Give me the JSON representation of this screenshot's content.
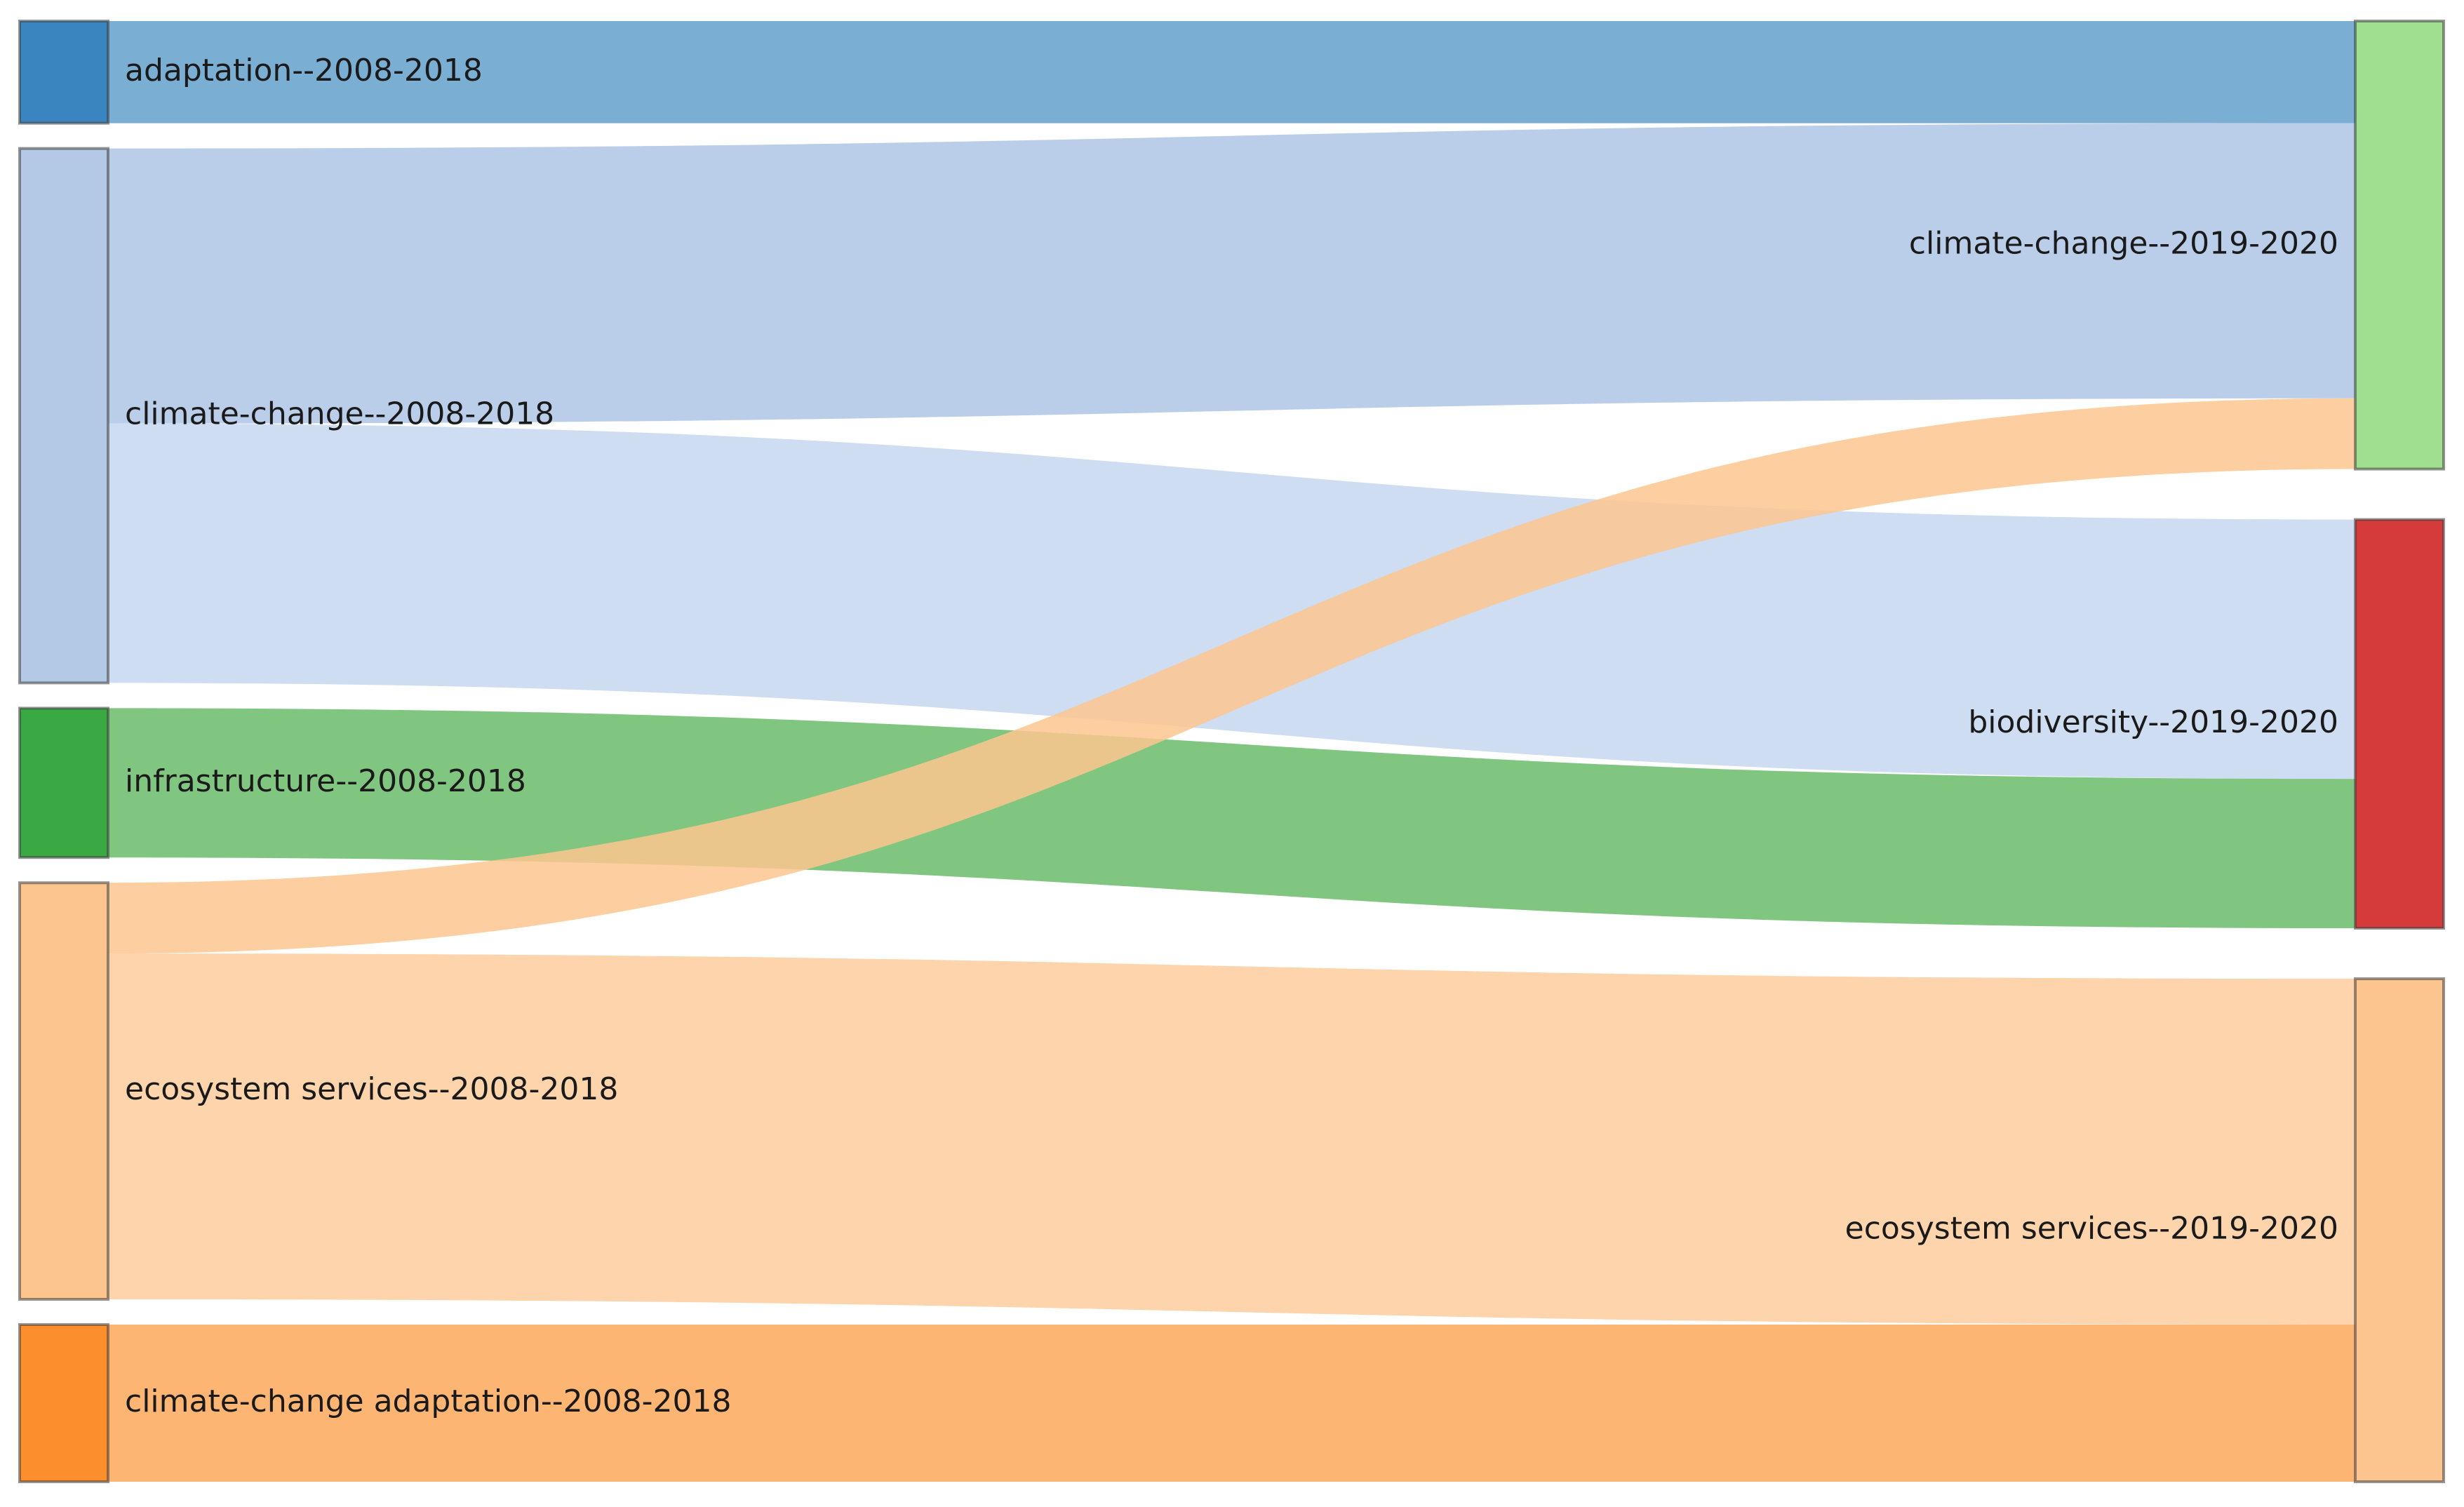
{
  "chart_data": {
    "type": "sankey",
    "title": "",
    "nodes": [
      {
        "id": "adaptation-2008",
        "label": "adaptation--2008-2018",
        "column": "left",
        "color": "#3a85c0"
      },
      {
        "id": "climate-change-2008",
        "label": "climate-change--2008-2018",
        "column": "left",
        "color": "#b4c9e6"
      },
      {
        "id": "infrastructure-2008",
        "label": "infrastructure--2008-2018",
        "column": "left",
        "color": "#3aa843"
      },
      {
        "id": "ecosystem-services-2008",
        "label": "ecosystem services--2008-2018",
        "column": "left",
        "color": "#fcc48e"
      },
      {
        "id": "cc-adaptation-2008",
        "label": "climate-change adaptation--2008-2018",
        "column": "left",
        "color": "#fd8e2c"
      },
      {
        "id": "climate-change-2019",
        "label": "climate-change--2019-2020",
        "column": "right",
        "color": "#a0df8f"
      },
      {
        "id": "biodiversity-2019",
        "label": "biodiversity--2019-2020",
        "column": "right",
        "color": "#d63b3c"
      },
      {
        "id": "ecosystem-services-2019",
        "label": "ecosystem services--2019-2020",
        "column": "right",
        "color": "#fcc48e"
      }
    ],
    "links": [
      {
        "source": "adaptation-2008",
        "target": "climate-change-2019",
        "value": 6.5,
        "color": "#63a0cb"
      },
      {
        "source": "climate-change-2008",
        "target": "climate-change-2019",
        "value": 17.5,
        "color": "#aec6e6"
      },
      {
        "source": "climate-change-2008",
        "target": "biodiversity-2019",
        "value": 16.5,
        "color": "#c5d7ee"
      },
      {
        "source": "infrastructure-2008",
        "target": "biodiversity-2019",
        "value": 9.5,
        "color": "#6abc6a"
      },
      {
        "source": "ecosystem-services-2008",
        "target": "climate-change-2019",
        "value": 4.5,
        "color": "#fdc68f"
      },
      {
        "source": "ecosystem-services-2008",
        "target": "ecosystem-services-2019",
        "value": 22,
        "color": "#fdcc9e"
      },
      {
        "source": "cc-adaptation-2008",
        "target": "ecosystem-services-2019",
        "value": 10,
        "color": "#fda85a"
      }
    ]
  }
}
